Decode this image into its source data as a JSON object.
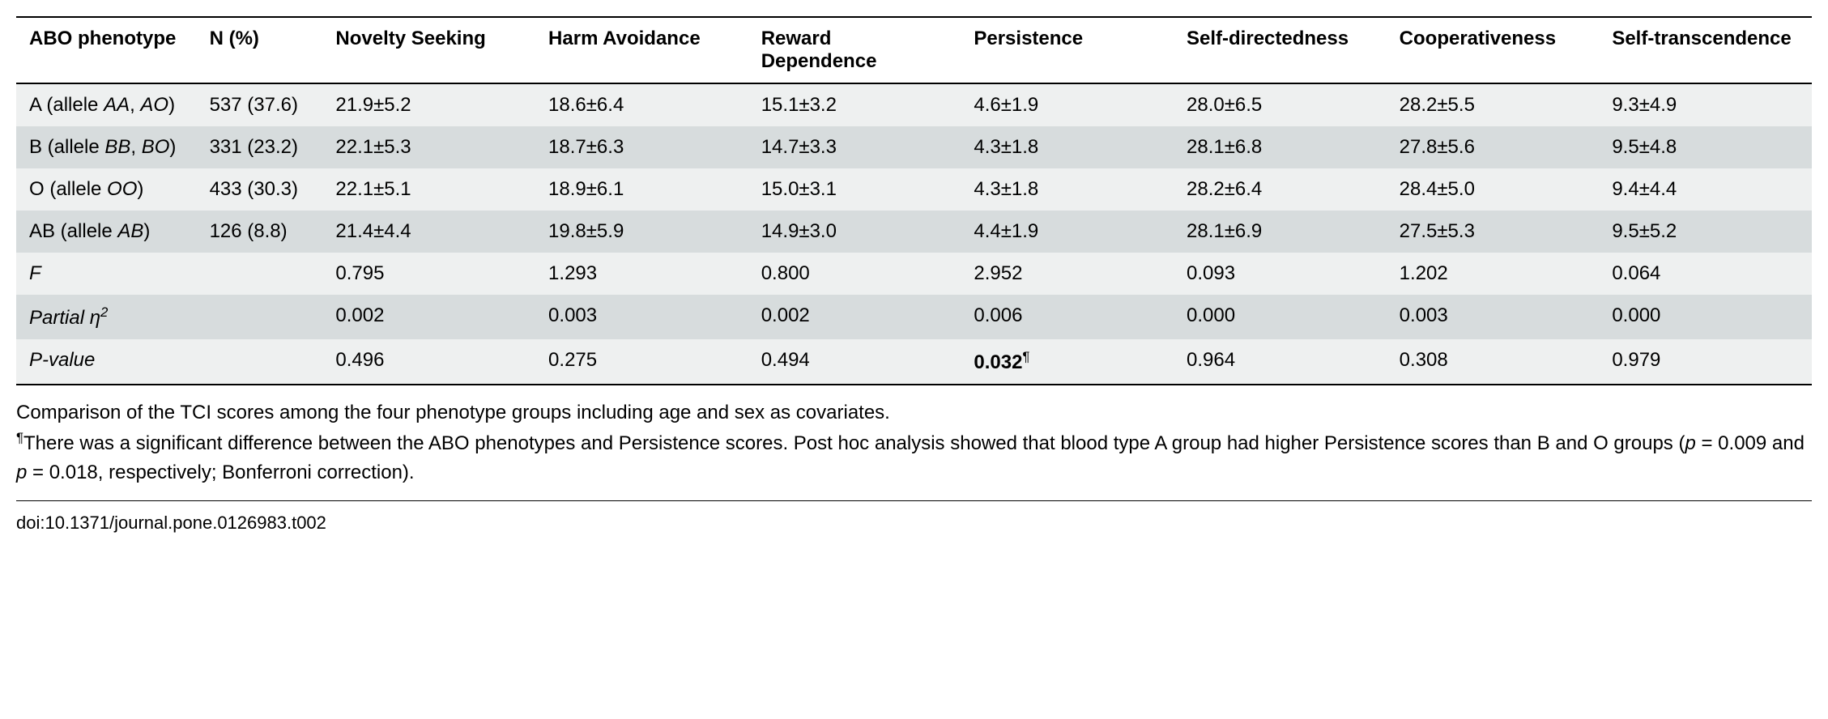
{
  "headers": {
    "pheno": "ABO phenotype",
    "n": "N (%)",
    "novelty": "Novelty Seeking",
    "harm": "Harm Avoidance",
    "reward": "Reward Dependence",
    "persistence": "Persistence",
    "selfdir": "Self-directedness",
    "coop": "Cooperativeness",
    "selftrans": "Self-transcendence"
  },
  "rows": [
    {
      "pheno_pre": "A (allele ",
      "pheno_ital": "AA",
      "pheno_mid": ", ",
      "pheno_ital2": "AO",
      "pheno_post": ")",
      "n": "537 (37.6)",
      "novelty": "21.9±5.2",
      "harm": "18.6±6.4",
      "reward": "15.1±3.2",
      "persistence": "4.6±1.9",
      "selfdir": "28.0±6.5",
      "coop": "28.2±5.5",
      "selftrans": "9.3±4.9"
    },
    {
      "pheno_pre": "B (allele ",
      "pheno_ital": "BB",
      "pheno_mid": ", ",
      "pheno_ital2": "BO",
      "pheno_post": ")",
      "n": "331 (23.2)",
      "novelty": "22.1±5.3",
      "harm": "18.7±6.3",
      "reward": "14.7±3.3",
      "persistence": "4.3±1.8",
      "selfdir": "28.1±6.8",
      "coop": "27.8±5.6",
      "selftrans": "9.5±4.8"
    },
    {
      "pheno_pre": "O (allele ",
      "pheno_ital": "OO",
      "pheno_mid": "",
      "pheno_ital2": "",
      "pheno_post": ")",
      "n": "433 (30.3)",
      "novelty": "22.1±5.1",
      "harm": "18.9±6.1",
      "reward": "15.0±3.1",
      "persistence": "4.3±1.8",
      "selfdir": "28.2±6.4",
      "coop": "28.4±5.0",
      "selftrans": "9.4±4.4"
    },
    {
      "pheno_pre": "AB (allele ",
      "pheno_ital": "AB",
      "pheno_mid": "",
      "pheno_ital2": "",
      "pheno_post": ")",
      "n": "126 (8.8)",
      "novelty": "21.4±4.4",
      "harm": "19.8±5.9",
      "reward": "14.9±3.0",
      "persistence": "4.4±1.9",
      "selfdir": "28.1±6.9",
      "coop": "27.5±5.3",
      "selftrans": "9.5±5.2"
    }
  ],
  "stats": {
    "f": {
      "label": "F",
      "novelty": "0.795",
      "harm": "1.293",
      "reward": "0.800",
      "persistence": "2.952",
      "selfdir": "0.093",
      "coop": "1.202",
      "selftrans": "0.064"
    },
    "eta": {
      "label_pre": "Partial ",
      "label_ital": "η",
      "label_sup": "2",
      "novelty": "0.002",
      "harm": "0.003",
      "reward": "0.002",
      "persistence": "0.006",
      "selfdir": "0.000",
      "coop": "0.003",
      "selftrans": "0.000"
    },
    "p": {
      "label": "P-value",
      "novelty": "0.496",
      "harm": "0.275",
      "reward": "0.494",
      "persistence": "0.032",
      "persistence_mark": "¶",
      "selfdir": "0.964",
      "coop": "0.308",
      "selftrans": "0.979"
    }
  },
  "footnote": {
    "line1": "Comparison of the TCI scores among the four phenotype groups including age and sex as covariates.",
    "line2_mark": "¶",
    "line2_a": "There was a significant difference between the ABO phenotypes and Persistence scores. Post hoc analysis showed that blood type A group had higher Persistence scores than B and O groups (",
    "line2_p_ital": "p",
    "line2_b": " = 0.009 and ",
    "line2_p_ital2": "p",
    "line2_c": " = 0.018, respectively; Bonferroni correction)."
  },
  "doi": "doi:10.1371/journal.pone.0126983.t002"
}
